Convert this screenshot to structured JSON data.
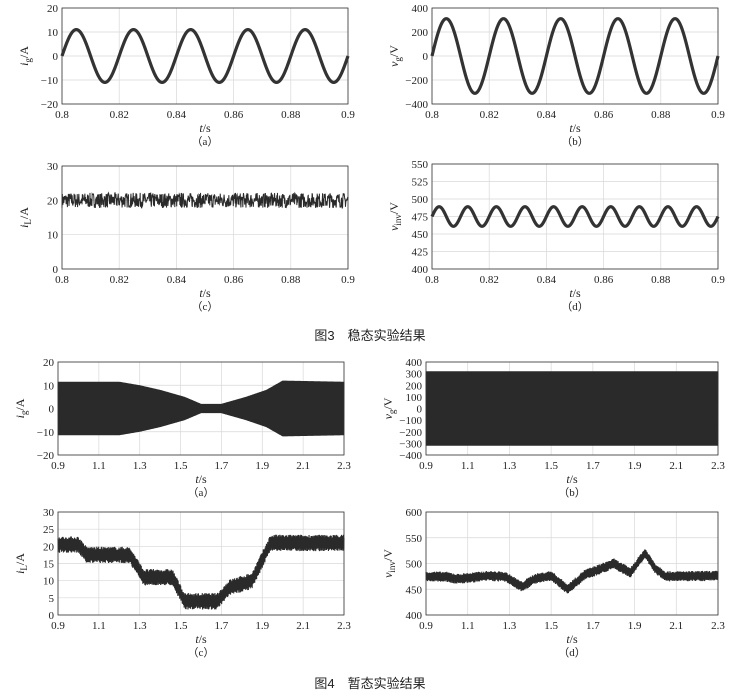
{
  "fig3_caption": "图3　稳态实验结果",
  "fig4_caption": "图4　暂态实验结果",
  "chart_data": [
    {
      "id": "f3a",
      "type": "line",
      "sub": "（a）",
      "ylabel": "i_g/A",
      "xlabel": "t/s",
      "xlim": [
        0.8,
        0.9
      ],
      "ylim": [
        -20,
        20
      ],
      "xticks": [
        "0.8",
        "0.82",
        "0.84",
        "0.86",
        "0.88",
        "0.9"
      ],
      "yticks": [
        "−20",
        "−10",
        "0",
        "10",
        "20"
      ],
      "signal": {
        "kind": "sine",
        "offset": 0,
        "amplitude": 11,
        "frequency": 50,
        "phase": 0,
        "ripple": 1
      }
    },
    {
      "id": "f3b",
      "type": "line",
      "sub": "（b）",
      "ylabel": "v_g/V",
      "xlabel": "t/s",
      "xlim": [
        0.8,
        0.9
      ],
      "ylim": [
        -400,
        400
      ],
      "xticks": [
        "0.8",
        "0.82",
        "0.84",
        "0.86",
        "0.88",
        "0.9"
      ],
      "yticks": [
        "−400",
        "−200",
        "0",
        "200",
        "400"
      ],
      "signal": {
        "kind": "sine",
        "offset": 0,
        "amplitude": 311,
        "frequency": 50,
        "phase": 0,
        "ripple": 8
      }
    },
    {
      "id": "f3c",
      "type": "line",
      "sub": "（c）",
      "ylabel": "i_L/A",
      "xlabel": "t/s",
      "xlim": [
        0.8,
        0.9
      ],
      "ylim": [
        0,
        30
      ],
      "xticks": [
        "0.8",
        "0.82",
        "0.84",
        "0.86",
        "0.88",
        "0.9"
      ],
      "yticks": [
        "0",
        "10",
        "20",
        "30"
      ],
      "signal": {
        "kind": "band",
        "offset": 20,
        "ripple": 2.2
      }
    },
    {
      "id": "f3d",
      "type": "line",
      "sub": "（d）",
      "ylabel": "v_inv/V",
      "xlabel": "t/s",
      "xlim": [
        0.8,
        0.9
      ],
      "ylim": [
        400,
        550
      ],
      "xticks": [
        "0.8",
        "0.82",
        "0.84",
        "0.86",
        "0.88",
        "0.9"
      ],
      "yticks": [
        "400",
        "425",
        "450",
        "475",
        "500",
        "525",
        "550"
      ],
      "signal": {
        "kind": "sine",
        "offset": 475,
        "amplitude": 14,
        "frequency": 100,
        "phase": 0,
        "ripple": 1.5
      }
    },
    {
      "id": "f4a",
      "type": "line",
      "sub": "（a）",
      "ylabel": "i_g/A",
      "xlabel": "t/s",
      "xlim": [
        0.9,
        2.3
      ],
      "ylim": [
        -20,
        20
      ],
      "xticks": [
        "0.9",
        "1.1",
        "1.3",
        "1.5",
        "1.7",
        "1.9",
        "2.1",
        "2.3"
      ],
      "yticks": [
        "−20",
        "−10",
        "0",
        "10",
        "20"
      ],
      "signal": {
        "kind": "envelope",
        "env_x": [
          0.9,
          1.2,
          1.3,
          1.4,
          1.52,
          1.6,
          1.7,
          1.82,
          1.92,
          2.0,
          2.3
        ],
        "env_y": [
          11.5,
          11.5,
          10,
          8,
          5,
          2,
          2,
          5,
          8,
          12,
          11.5
        ]
      }
    },
    {
      "id": "f4b",
      "type": "line",
      "sub": "（b）",
      "ylabel": "v_g/V",
      "xlabel": "t/s",
      "xlim": [
        0.9,
        2.3
      ],
      "ylim": [
        -400,
        400
      ],
      "xticks": [
        "0.9",
        "1.1",
        "1.3",
        "1.5",
        "1.7",
        "1.9",
        "2.1",
        "2.3"
      ],
      "yticks": [
        "−400",
        "−300",
        "−200",
        "−100",
        "0",
        "100",
        "200",
        "300",
        "400"
      ],
      "signal": {
        "kind": "envelope",
        "env_x": [
          0.9,
          2.3
        ],
        "env_y": [
          320,
          320
        ]
      }
    },
    {
      "id": "f4c",
      "type": "line",
      "sub": "（c）",
      "ylabel": "i_L/A",
      "xlabel": "t/s",
      "xlim": [
        0.9,
        2.3
      ],
      "ylim": [
        0,
        30
      ],
      "xticks": [
        "0.9",
        "1.1",
        "1.3",
        "1.5",
        "1.7",
        "1.9",
        "2.1",
        "2.3"
      ],
      "yticks": [
        "0",
        "5",
        "10",
        "15",
        "20",
        "25",
        "30"
      ],
      "signal": {
        "kind": "band_path",
        "ripple": 2.4,
        "path_x": [
          0.9,
          1.0,
          1.04,
          1.25,
          1.32,
          1.46,
          1.52,
          1.68,
          1.74,
          1.85,
          1.94,
          2.3
        ],
        "path_y": [
          20.5,
          20.5,
          17.5,
          17.5,
          11,
          11,
          4,
          4,
          8,
          10,
          21,
          21
        ]
      }
    },
    {
      "id": "f4d",
      "type": "line",
      "sub": "（d）",
      "ylabel": "v_inv/V",
      "xlabel": "t/s",
      "xlim": [
        0.9,
        2.3
      ],
      "ylim": [
        400,
        600
      ],
      "xticks": [
        "0.9",
        "1.1",
        "1.3",
        "1.5",
        "1.7",
        "1.9",
        "2.1",
        "2.3"
      ],
      "yticks": [
        "400",
        "450",
        "500",
        "550",
        "600"
      ],
      "signal": {
        "kind": "band_path",
        "ripple": 10,
        "path_x": [
          0.9,
          1.0,
          1.05,
          1.2,
          1.28,
          1.36,
          1.42,
          1.5,
          1.58,
          1.66,
          1.74,
          1.8,
          1.88,
          1.95,
          2.0,
          2.05,
          2.3
        ],
        "path_y": [
          475,
          474,
          470,
          476,
          474,
          455,
          470,
          476,
          450,
          478,
          490,
          500,
          482,
          520,
          490,
          475,
          476
        ]
      }
    }
  ]
}
